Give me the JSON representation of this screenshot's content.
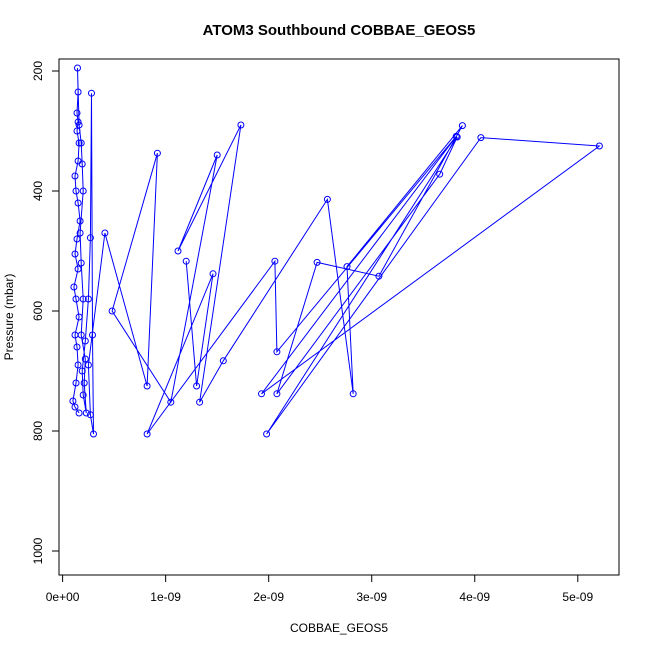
{
  "chart_data": {
    "type": "line",
    "title": "ATOM3 Southbound COBBAE_GEOS5",
    "xlabel": "COBBAE_GEOS5",
    "ylabel": "Pressure (mbar)",
    "xlim": [
      -3.5e-11,
      5.4e-09
    ],
    "ylim": [
      1040,
      180
    ],
    "y_inverted": true,
    "x_ticks": [
      {
        "value": 0,
        "label": "0e+00"
      },
      {
        "value": 1e-09,
        "label": "1e-09"
      },
      {
        "value": 2e-09,
        "label": "2e-09"
      },
      {
        "value": 3e-09,
        "label": "3e-09"
      },
      {
        "value": 4e-09,
        "label": "4e-09"
      },
      {
        "value": 5e-09,
        "label": "5e-09"
      }
    ],
    "y_ticks": [
      {
        "value": 200,
        "label": "200"
      },
      {
        "value": 400,
        "label": "400"
      },
      {
        "value": 600,
        "label": "600"
      },
      {
        "value": 800,
        "label": "800"
      },
      {
        "value": 1000,
        "label": "1000"
      }
    ],
    "grid": false,
    "marker": "open-circle",
    "series": [
      {
        "color": "#0000ff",
        "points": [
          [
            1.6e-10,
            770
          ],
          [
            1.2e-10,
            760
          ],
          [
            1e-10,
            750
          ],
          [
            1.3e-10,
            720
          ],
          [
            1.5e-10,
            690
          ],
          [
            1.4e-10,
            660
          ],
          [
            1.2e-10,
            640
          ],
          [
            1.6e-10,
            610
          ],
          [
            1.3e-10,
            580
          ],
          [
            1.1e-10,
            560
          ],
          [
            1.5e-10,
            530
          ],
          [
            1.2e-10,
            505
          ],
          [
            1.4e-10,
            480
          ],
          [
            1.7e-10,
            450
          ],
          [
            1.5e-10,
            420
          ],
          [
            1.3e-10,
            400
          ],
          [
            1.2e-10,
            375
          ],
          [
            1.5e-10,
            350
          ],
          [
            1.6e-10,
            320
          ],
          [
            1.4e-10,
            300
          ],
          [
            1.5e-10,
            285
          ],
          [
            1.4e-10,
            270
          ],
          [
            1.5e-10,
            235
          ],
          [
            1.45e-10,
            195
          ],
          [
            1.6e-10,
            290
          ],
          [
            1.8e-10,
            320
          ],
          [
            1.9e-10,
            355
          ],
          [
            2e-10,
            400
          ],
          [
            1.7e-10,
            470
          ],
          [
            1.8e-10,
            520
          ],
          [
            2e-10,
            580
          ],
          [
            1.8e-10,
            640
          ],
          [
            2.2e-10,
            680
          ],
          [
            2.1e-10,
            720
          ],
          [
            2.3e-10,
            770
          ],
          [
            2e-10,
            740
          ],
          [
            1.9e-10,
            700
          ],
          [
            2.2e-10,
            650
          ],
          [
            2.5e-10,
            580
          ],
          [
            2.7e-10,
            478
          ],
          [
            2.8e-10,
            237
          ],
          [
            2.9e-10,
            640
          ],
          [
            3e-10,
            805
          ],
          [
            2.7e-10,
            773
          ],
          [
            2.5e-10,
            690
          ],
          [
            4.1e-10,
            470
          ],
          [
            8.2e-10,
            725
          ],
          [
            9.2e-10,
            337
          ],
          [
            4.8e-10,
            600
          ],
          [
            1.05e-09,
            752
          ],
          [
            1.5e-09,
            340
          ],
          [
            1.12e-09,
            500
          ],
          [
            1.73e-09,
            290
          ],
          [
            1.33e-09,
            752
          ],
          [
            1.56e-09,
            683
          ],
          [
            2.57e-09,
            414
          ],
          [
            2.82e-09,
            738
          ],
          [
            2.76e-09,
            526
          ],
          [
            3.88e-09,
            291
          ],
          [
            3.07e-09,
            542
          ],
          [
            2.47e-09,
            519
          ],
          [
            2.08e-09,
            738
          ],
          [
            3.66e-09,
            372
          ],
          [
            3.83e-09,
            310
          ],
          [
            1.98e-09,
            805
          ],
          [
            4.06e-09,
            311
          ],
          [
            5.21e-09,
            325
          ],
          [
            1.93e-09,
            738
          ],
          [
            3.82e-09,
            309
          ],
          [
            2.08e-09,
            668
          ],
          [
            2.06e-09,
            517
          ],
          [
            8.2e-10,
            805
          ],
          [
            1.46e-09,
            538
          ],
          [
            1.3e-09,
            725
          ],
          [
            1.2e-09,
            517
          ]
        ]
      }
    ]
  }
}
